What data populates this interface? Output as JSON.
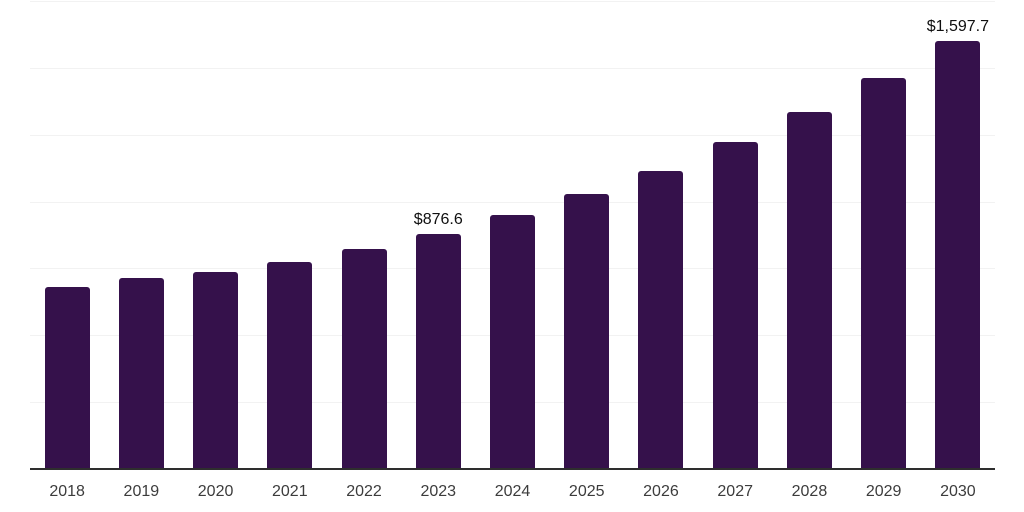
{
  "chart_data": {
    "type": "bar",
    "categories": [
      "2018",
      "2019",
      "2020",
      "2021",
      "2022",
      "2023",
      "2024",
      "2025",
      "2026",
      "2027",
      "2028",
      "2029",
      "2030"
    ],
    "values": [
      678,
      711,
      734,
      770,
      820,
      876.6,
      946,
      1025,
      1112,
      1218,
      1333,
      1460,
      1597.7
    ],
    "data_labels": [
      "",
      "",
      "",
      "",
      "",
      "$876.6",
      "",
      "",
      "",
      "",
      "",
      "",
      "$1,597.7"
    ],
    "title": "",
    "xlabel": "",
    "ylabel": "",
    "ylim": [
      0,
      1750
    ],
    "grid_step": 250,
    "grid": "horizontal",
    "legend": "none",
    "y_axis_labels_visible": false,
    "colors": {
      "bar": "#35114B",
      "gridline": "#f2f2f2",
      "axis": "#2e2e2e",
      "tick_label": "#3c3c3c",
      "value_label": "#0f0f0f",
      "background": "#ffffff"
    }
  }
}
